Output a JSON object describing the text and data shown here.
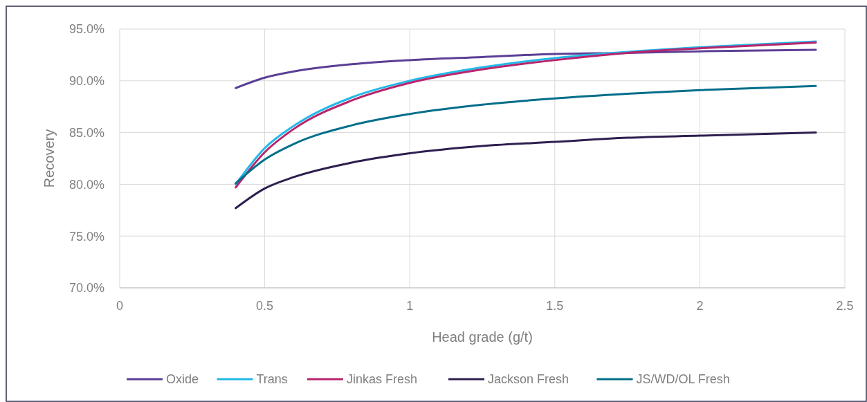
{
  "chart_data": {
    "type": "line",
    "xlabel": "Head grade (g/t)",
    "ylabel": "Recovery",
    "x": [
      0.4,
      0.5,
      0.6,
      0.8,
      1,
      1.25,
      1.5,
      1.75,
      2,
      2.4
    ],
    "series": [
      {
        "name": "Oxide",
        "color": "#5b3f95",
        "values": [
          89.3,
          90.3,
          90.9,
          91.6,
          92.0,
          92.3,
          92.6,
          92.7,
          92.85,
          93.0
        ]
      },
      {
        "name": "Trans",
        "color": "#22b8e8",
        "values": [
          80.0,
          83.5,
          85.65,
          88.4,
          90.0,
          91.3,
          92.2,
          92.8,
          93.25,
          93.8
        ]
      },
      {
        "name": "Jinkas Fresh",
        "color": "#b8246c",
        "values": [
          79.7,
          83.1,
          85.35,
          88.1,
          89.8,
          91.1,
          92.0,
          92.7,
          93.15,
          93.7
        ]
      },
      {
        "name": "Jackson Fresh",
        "color": "#2e1f4f",
        "values": [
          77.7,
          79.6,
          80.7,
          82.1,
          83.0,
          83.7,
          84.1,
          84.5,
          84.7,
          85.0
        ]
      },
      {
        "name": "JS/WD/OL Fresh",
        "color": "#006e8a",
        "values": [
          80.1,
          82.4,
          83.9,
          85.7,
          86.8,
          87.7,
          88.3,
          88.75,
          89.1,
          89.5
        ]
      }
    ],
    "xlim": [
      0,
      2.5
    ],
    "xticks": [
      0,
      0.5,
      1,
      1.5,
      2,
      2.5
    ],
    "ylim": [
      70,
      95
    ],
    "yticks": [
      {
        "value": 70,
        "label": "70.0%"
      },
      {
        "value": 75,
        "label": "75.0%"
      },
      {
        "value": 80,
        "label": "80.0%"
      },
      {
        "value": 85,
        "label": "85.0%"
      },
      {
        "value": 90,
        "label": "90.0%"
      },
      {
        "value": 95,
        "label": "95.0%"
      }
    ],
    "grid": true,
    "legend": "bottom",
    "marker": "none",
    "line_style": "solid"
  }
}
